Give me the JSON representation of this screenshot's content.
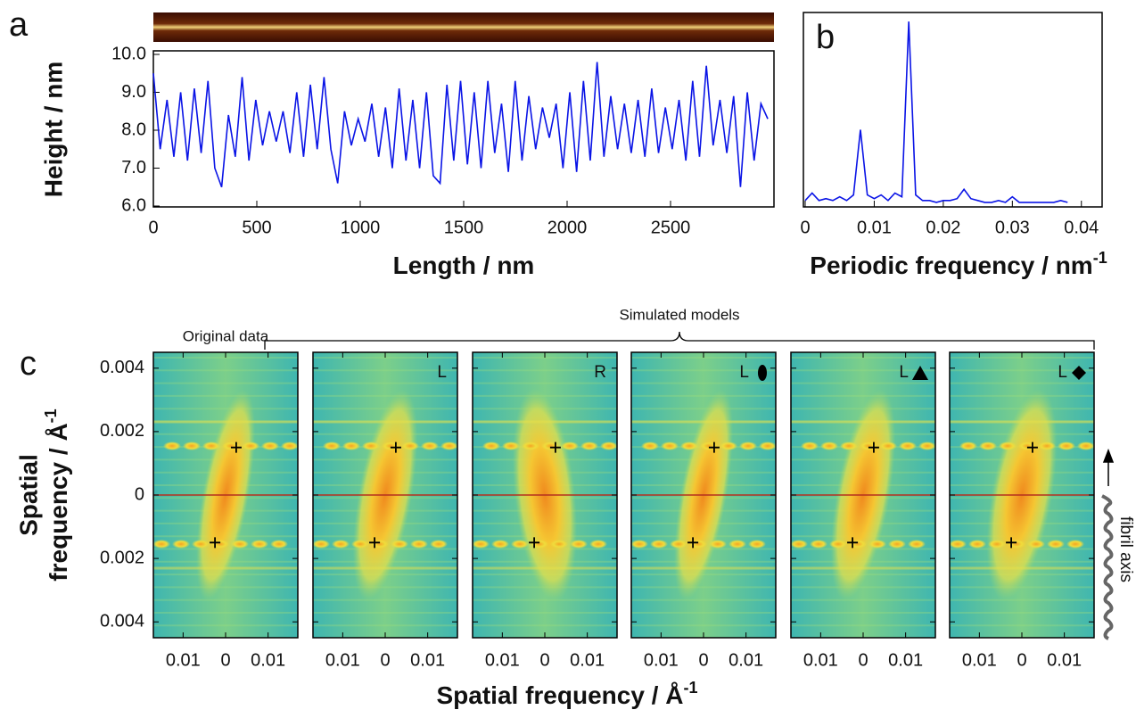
{
  "chart_data": [
    {
      "type": "line",
      "panel_label": "a",
      "x_label": "Length / nm",
      "y_label": "Height / nm",
      "color": "#0a14e6",
      "xlim": [
        0,
        3000
      ],
      "ylim": [
        6,
        10
      ],
      "xticks": [
        0,
        500,
        1000,
        1500,
        2000,
        2500
      ],
      "yticks": [
        {
          "value": 10,
          "label": "10.0"
        },
        {
          "value": 9,
          "label": "9.0"
        },
        {
          "value": 8,
          "label": "8.0"
        },
        {
          "value": 7,
          "label": "7.0"
        },
        {
          "value": 6,
          "label": "6.0"
        }
      ],
      "x": [
        0,
        33,
        66,
        99,
        132,
        165,
        198,
        231,
        264,
        297,
        330,
        363,
        396,
        429,
        462,
        495,
        528,
        561,
        594,
        627,
        660,
        693,
        726,
        759,
        792,
        825,
        858,
        891,
        924,
        957,
        990,
        1023,
        1056,
        1089,
        1122,
        1155,
        1188,
        1221,
        1254,
        1287,
        1320,
        1353,
        1386,
        1419,
        1452,
        1485,
        1518,
        1551,
        1584,
        1617,
        1650,
        1683,
        1716,
        1749,
        1782,
        1815,
        1848,
        1881,
        1914,
        1947,
        1980,
        2013,
        2046,
        2079,
        2112,
        2145,
        2178,
        2211,
        2244,
        2277,
        2310,
        2343,
        2376,
        2409,
        2442,
        2475,
        2508,
        2541,
        2574,
        2607,
        2640,
        2673,
        2706,
        2739,
        2772,
        2805,
        2838,
        2871,
        2904,
        2937,
        2970
      ],
      "values": [
        9.5,
        7.5,
        8.8,
        7.3,
        9.0,
        7.2,
        9.1,
        7.4,
        9.3,
        7.0,
        6.5,
        8.4,
        7.3,
        9.4,
        7.2,
        8.8,
        7.6,
        8.5,
        7.7,
        8.5,
        7.4,
        9.0,
        7.3,
        9.2,
        7.5,
        9.4,
        7.5,
        6.6,
        8.5,
        7.6,
        8.3,
        7.7,
        8.7,
        7.3,
        8.6,
        7.0,
        9.1,
        7.2,
        8.8,
        7.0,
        9.0,
        6.8,
        6.6,
        9.2,
        7.2,
        9.3,
        7.1,
        9.0,
        7.0,
        9.3,
        7.4,
        8.7,
        6.9,
        9.3,
        7.2,
        8.9,
        7.5,
        8.6,
        7.8,
        8.7,
        7.0,
        9.0,
        6.9,
        9.3,
        7.2,
        9.8,
        7.3,
        8.9,
        7.5,
        8.7,
        7.4,
        8.8,
        7.3,
        9.1,
        7.4,
        8.6,
        7.5,
        8.8,
        7.2,
        9.3,
        7.3,
        9.7,
        7.6,
        8.8,
        7.4,
        8.9,
        6.5,
        9.0,
        7.2,
        8.7,
        8.3
      ]
    },
    {
      "type": "line",
      "panel_label": "b",
      "x_label": "Periodic frequency / nm",
      "x_label_sup": "-1",
      "color": "#0a14e6",
      "xlim": [
        0,
        0.043
      ],
      "ylim": [
        0,
        1
      ],
      "xticks": [
        0,
        0.01,
        0.02,
        0.03,
        0.04
      ],
      "x": [
        0,
        0.001,
        0.002,
        0.003,
        0.004,
        0.005,
        0.006,
        0.007,
        0.008,
        0.009,
        0.01,
        0.011,
        0.012,
        0.013,
        0.014,
        0.015,
        0.016,
        0.017,
        0.018,
        0.019,
        0.02,
        0.021,
        0.022,
        0.023,
        0.024,
        0.025,
        0.026,
        0.027,
        0.028,
        0.029,
        0.03,
        0.031,
        0.032,
        0.033,
        0.034,
        0.035,
        0.036,
        0.037,
        0.038
      ],
      "values": [
        0.02,
        0.06,
        0.02,
        0.03,
        0.02,
        0.04,
        0.02,
        0.05,
        0.4,
        0.05,
        0.03,
        0.05,
        0.02,
        0.06,
        0.04,
        0.98,
        0.05,
        0.02,
        0.02,
        0.01,
        0.02,
        0.02,
        0.03,
        0.08,
        0.03,
        0.02,
        0.01,
        0.01,
        0.02,
        0.01,
        0.04,
        0.01,
        0.01,
        0.01,
        0.01,
        0.01,
        0.01,
        0.02,
        0.01
      ]
    },
    {
      "type": "heatmap-grid",
      "panel_label": "c",
      "x_label": "Spatial frequency / Å",
      "x_label_sup": "-1",
      "y_label": [
        "Spatial",
        "frequency / Å"
      ],
      "y_label_sup": "-1",
      "group_label": "Simulated models",
      "side_label": "fibril axis",
      "xlim": [
        -0.017,
        0.017
      ],
      "ylim": [
        -0.0045,
        0.0045
      ],
      "xticks": [
        {
          "value": -0.01,
          "label": "0.01"
        },
        0,
        0.01
      ],
      "yticks": [
        0.004,
        0.002,
        0,
        {
          "value": -0.002,
          "label": "0.002"
        },
        {
          "value": -0.004,
          "label": "0.004"
        }
      ],
      "panels": [
        {
          "title": "Original data",
          "crosses": {
            "x": [
              0.0025,
              -0.0025
            ],
            "y": [
              0.0015,
              -0.0015
            ]
          }
        },
        {
          "corner": "L",
          "crosses": {
            "x": [
              0.0025,
              -0.0025
            ],
            "y": [
              0.0015,
              -0.0015
            ]
          }
        },
        {
          "corner": "R",
          "crosses": {
            "x": [
              0.0025,
              -0.0025
            ],
            "y": [
              0.0015,
              -0.0015
            ]
          }
        },
        {
          "corner": "L",
          "marker": "ellipse",
          "crosses": {
            "x": [
              0.0025,
              -0.0025
            ],
            "y": [
              0.0015,
              -0.0015
            ]
          }
        },
        {
          "corner": "L",
          "marker": "triangle",
          "crosses": {
            "x": [
              0.0025,
              -0.0025
            ],
            "y": [
              0.0015,
              -0.0015
            ]
          }
        },
        {
          "corner": "L",
          "marker": "diamond",
          "crosses": {
            "x": [
              0.0025,
              -0.0025
            ],
            "y": [
              0.0015,
              -0.0015
            ]
          }
        }
      ]
    }
  ]
}
